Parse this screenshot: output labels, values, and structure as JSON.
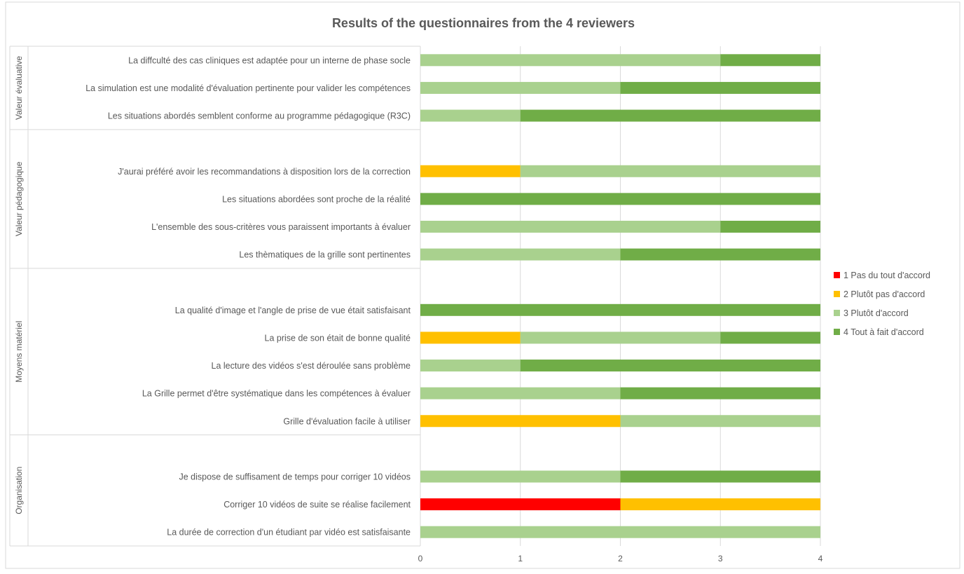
{
  "chart_data": {
    "type": "bar",
    "stacked": true,
    "orientation": "horizontal",
    "title": "Results of the questionnaires from the 4 reviewers",
    "xlim": [
      0,
      4
    ],
    "xticks": [
      "0",
      "1",
      "2",
      "3",
      "4"
    ],
    "grid": "vertical",
    "legend_position": "right",
    "legend": [
      {
        "label": "1 Pas du tout d'accord",
        "color": "#FF0000"
      },
      {
        "label": "2  Plutôt pas d'accord",
        "color": "#FFC000"
      },
      {
        "label": "3  Plutôt d'accord",
        "color": "#A9D18E"
      },
      {
        "label": "4  Tout à fait d'accord",
        "color": "#70AD47"
      }
    ],
    "groups": [
      {
        "name": "Valeur évaluative",
        "items": [
          {
            "label": "La diffculté des cas cliniques est adaptée pour un interne de phase socle",
            "values": [
              0,
              0,
              3,
              1
            ]
          },
          {
            "label": "La simulation est une modalité d'évaluation pertinente pour valider les compétences",
            "values": [
              0,
              0,
              2,
              2
            ]
          },
          {
            "label": "Les situations abordés semblent conforme au programme pédagogique (R3C)",
            "values": [
              0,
              0,
              1,
              3
            ]
          }
        ]
      },
      {
        "name": "Valeur pédagogique",
        "items": [
          {
            "label": "",
            "values": [
              0,
              0,
              0,
              0
            ]
          },
          {
            "label": "J'aurai préféré avoir les recommandations à disposition lors de la correction",
            "values": [
              0,
              1,
              3,
              0
            ]
          },
          {
            "label": "Les situations abordées sont  proche de la réalité",
            "values": [
              0,
              0,
              0,
              4
            ]
          },
          {
            "label": "L'ensemble des sous-critères vous paraissent importants à évaluer",
            "values": [
              0,
              0,
              3,
              1
            ]
          },
          {
            "label": "Les thèmatiques de la grille sont pertinentes",
            "values": [
              0,
              0,
              2,
              2
            ]
          }
        ]
      },
      {
        "name": "Moyens matériel",
        "items": [
          {
            "label": "",
            "values": [
              0,
              0,
              0,
              0
            ]
          },
          {
            "label": "La qualité d'image et l'angle de prise de vue était satisfaisant",
            "values": [
              0,
              0,
              0,
              4
            ]
          },
          {
            "label": "La prise de son était de bonne qualité",
            "values": [
              0,
              1,
              2,
              1
            ]
          },
          {
            "label": "La lecture des vidéos s'est déroulée sans problème",
            "values": [
              0,
              0,
              1,
              3
            ]
          },
          {
            "label": "La Grille permet d'être systématique dans les compétences à évaluer",
            "values": [
              0,
              0,
              2,
              2
            ]
          },
          {
            "label": "Grille d'évaluation facile à utiliser",
            "values": [
              0,
              2,
              2,
              0
            ]
          }
        ]
      },
      {
        "name": "Organisation",
        "items": [
          {
            "label": "",
            "values": [
              0,
              0,
              0,
              0
            ]
          },
          {
            "label": "Je dispose de suffisament de temps pour corriger 10 vidéos",
            "values": [
              0,
              0,
              2,
              2
            ]
          },
          {
            "label": "Corriger 10 vidéos de suite se réalise facilement",
            "values": [
              2,
              2,
              0,
              0
            ]
          },
          {
            "label": "La durée de correction d'un étudiant par vidéo est satisfaisante",
            "values": [
              0,
              0,
              4,
              0
            ]
          }
        ]
      }
    ]
  }
}
